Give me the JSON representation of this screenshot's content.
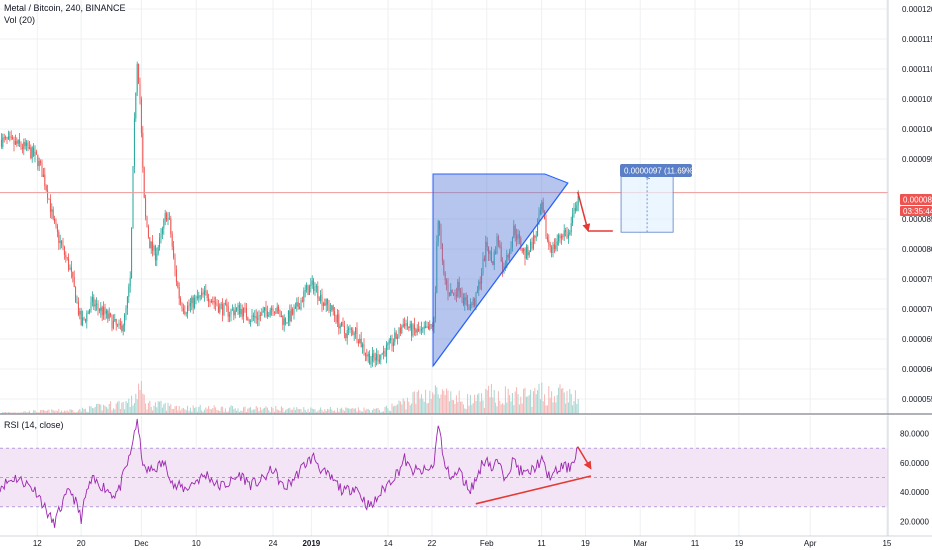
{
  "chart_data": [
    {
      "type": "candlestick",
      "title": "Metal / Bitcoin, 240, BINANCE",
      "volume_label": "Vol (20)",
      "ylim": [
        5.25e-05,
        0.0001215
      ],
      "y_ticks": [
        "0.0001200",
        "0.0001150",
        "0.0001100",
        "0.0001050",
        "0.0001000",
        "0.0000950",
        "0.0000850",
        "0.0000800",
        "0.0000750",
        "0.0000700",
        "0.0000650",
        "0.0000600",
        "0.0000550"
      ],
      "y_tick_values": [
        0.00012,
        0.000115,
        0.00011,
        0.000105,
        0.0001,
        9.5e-05,
        8.5e-05,
        8e-05,
        7.5e-05,
        7e-05,
        6.5e-05,
        6e-05,
        5.5e-05
      ],
      "current_price": "0.0000894",
      "current_price_value": 8.94e-05,
      "countdown": "03:35:44",
      "measure_label": "0.0000097 (11.69%) 97",
      "x_ticks": [
        {
          "label": "12",
          "day": 12
        },
        {
          "label": "20",
          "day": 20
        },
        {
          "label": "Dec",
          "day": 31
        },
        {
          "label": "10",
          "day": 41
        },
        {
          "label": "24",
          "day": 55
        },
        {
          "label": "2019",
          "day": 62
        },
        {
          "label": "14",
          "day": 76
        },
        {
          "label": "22",
          "day": 84
        },
        {
          "label": "Feb",
          "day": 94
        },
        {
          "label": "11",
          "day": 104
        },
        {
          "label": "19",
          "day": 112
        },
        {
          "label": "Mar",
          "day": 122
        },
        {
          "label": "11",
          "day": 132
        },
        {
          "label": "19",
          "day": 140
        },
        {
          "label": "Apr",
          "day": 153
        },
        {
          "label": "15",
          "day": 167
        }
      ],
      "x_domain_days": [
        5.2,
        167.2
      ],
      "price_path": [
        [
          5.2,
          9.82e-05
        ],
        [
          8,
          9.75e-05
        ],
        [
          10,
          9.68e-05
        ],
        [
          12,
          9.5e-05
        ],
        [
          13,
          9.25e-05
        ],
        [
          14,
          8.9e-05
        ],
        [
          15,
          8.4e-05
        ],
        [
          16,
          8.15e-05
        ],
        [
          17,
          7.9e-05
        ],
        [
          18,
          7.65e-05
        ],
        [
          19,
          7.2e-05
        ],
        [
          20,
          6.75e-05
        ],
        [
          21,
          6.9e-05
        ],
        [
          22,
          7.1e-05
        ],
        [
          24,
          6.95e-05
        ],
        [
          26,
          6.75e-05
        ],
        [
          27,
          6.65e-05
        ],
        [
          28,
          6.85e-05
        ],
        [
          29,
          7.5e-05
        ],
        [
          29.6,
          9.8e-05
        ],
        [
          30.2,
          0.000112
        ],
        [
          30.7,
          0.000106
        ],
        [
          31.2,
          9.4e-05
        ],
        [
          31.6,
          8.6e-05
        ],
        [
          32.5,
          8.1e-05
        ],
        [
          33.5,
          7.9e-05
        ],
        [
          34.5,
          8.15e-05
        ],
        [
          35.5,
          8.6e-05
        ],
        [
          36.2,
          8.4e-05
        ],
        [
          37,
          7.7e-05
        ],
        [
          38,
          7.15e-05
        ],
        [
          39,
          7e-05
        ],
        [
          41,
          7.15e-05
        ],
        [
          43,
          7.25e-05
        ],
        [
          45,
          7.05e-05
        ],
        [
          47,
          6.95e-05
        ],
        [
          49,
          7e-05
        ],
        [
          51,
          6.85e-05
        ],
        [
          53,
          6.9e-05
        ],
        [
          55,
          7.05e-05
        ],
        [
          57,
          6.8e-05
        ],
        [
          59,
          6.95e-05
        ],
        [
          61,
          7.3e-05
        ],
        [
          62.5,
          7.4e-05
        ],
        [
          64,
          7.15e-05
        ],
        [
          66,
          6.95e-05
        ],
        [
          68,
          6.6e-05
        ],
        [
          70,
          6.65e-05
        ],
        [
          72,
          6.25e-05
        ],
        [
          73,
          6.15e-05
        ],
        [
          74,
          6.2e-05
        ],
        [
          76,
          6.35e-05
        ],
        [
          78,
          6.6e-05
        ],
        [
          79,
          6.8e-05
        ],
        [
          80,
          6.65e-05
        ],
        [
          82,
          6.6e-05
        ],
        [
          83.5,
          6.65e-05
        ],
        [
          84.5,
          6.8e-05
        ],
        [
          85,
          8.6e-05
        ],
        [
          85.5,
          8.2e-05
        ],
        [
          86,
          7.6e-05
        ],
        [
          87,
          7.3e-05
        ],
        [
          88,
          7.25e-05
        ],
        [
          89,
          7.4e-05
        ],
        [
          90,
          7.1e-05
        ],
        [
          91,
          7.05e-05
        ],
        [
          92,
          7.15e-05
        ],
        [
          93,
          7.6e-05
        ],
        [
          94,
          8.1e-05
        ],
        [
          95,
          7.75e-05
        ],
        [
          96,
          8.2e-05
        ],
        [
          97,
          7.65e-05
        ],
        [
          98,
          7.95e-05
        ],
        [
          99,
          8.35e-05
        ],
        [
          100,
          8.1e-05
        ],
        [
          101,
          7.9e-05
        ],
        [
          102,
          8.05e-05
        ],
        [
          103,
          8.25e-05
        ],
        [
          104,
          8.7e-05
        ],
        [
          105,
          8.15e-05
        ],
        [
          106,
          8e-05
        ],
        [
          107,
          8.15e-05
        ],
        [
          108,
          8.3e-05
        ],
        [
          109,
          8.2e-05
        ],
        [
          110,
          8.65e-05
        ],
        [
          110.8,
          8.94e-05
        ]
      ],
      "volume_path": [
        [
          5.2,
          0.03
        ],
        [
          20,
          0.08
        ],
        [
          29.5,
          0.25
        ],
        [
          30.5,
          0.55
        ],
        [
          32,
          0.2
        ],
        [
          40,
          0.12
        ],
        [
          60,
          0.1
        ],
        [
          75,
          0.08
        ],
        [
          84,
          0.45
        ],
        [
          86,
          0.35
        ],
        [
          92,
          0.25
        ],
        [
          95,
          0.4
        ],
        [
          100,
          0.35
        ],
        [
          105,
          0.42
        ],
        [
          110,
          0.35
        ],
        [
          110.8,
          0.3
        ]
      ],
      "series": [
        {
          "name": "candles",
          "color_up": "#26a69a",
          "color_down": "#ef5350"
        },
        {
          "name": "volume",
          "color_up": "#a5d6d1",
          "color_down": "#f4b6b4"
        }
      ],
      "annotations": {
        "triangle": [
          [
            84.2,
            9.25e-05
          ],
          [
            104.6,
            9.25e-05
          ],
          [
            108.8,
            9.1e-05
          ],
          [
            84.2,
            6.05e-05
          ]
        ],
        "triangle_lower_line": [
          [
            84.2,
            6.05e-05
          ],
          [
            108.8,
            9.1e-05
          ]
        ],
        "arrow_down": [
          [
            110.6,
            8.95e-05
          ],
          [
            112.5,
            8.3e-05
          ]
        ],
        "arrow_flat": [
          [
            112.5,
            8.3e-05
          ],
          [
            117,
            8.3e-05
          ]
        ],
        "measure_box": [
          [
            118.5,
            9.25e-05
          ],
          [
            128,
            8.28e-05
          ]
        ]
      }
    },
    {
      "type": "line",
      "title": "RSI (14, close)",
      "ylim": [
        10,
        92
      ],
      "y_ticks": [
        "80.0000",
        "60.0000",
        "40.0000",
        "20.0000"
      ],
      "y_tick_values": [
        80,
        60,
        40,
        20
      ],
      "band": [
        30,
        70
      ],
      "rsi_path": [
        [
          5.2,
          44
        ],
        [
          8,
          50
        ],
        [
          10,
          46
        ],
        [
          12,
          40
        ],
        [
          13,
          32
        ],
        [
          14,
          25
        ],
        [
          15,
          18
        ],
        [
          16,
          27
        ],
        [
          17,
          35
        ],
        [
          18,
          42
        ],
        [
          19,
          33
        ],
        [
          20,
          22
        ],
        [
          21,
          40
        ],
        [
          22,
          48
        ],
        [
          24,
          44
        ],
        [
          26,
          38
        ],
        [
          27,
          42
        ],
        [
          28,
          55
        ],
        [
          29,
          65
        ],
        [
          29.6,
          80
        ],
        [
          30.2,
          88
        ],
        [
          30.8,
          72
        ],
        [
          31.5,
          55
        ],
        [
          33,
          55
        ],
        [
          35,
          60
        ],
        [
          36,
          54
        ],
        [
          37,
          43
        ],
        [
          38,
          44
        ],
        [
          39,
          42
        ],
        [
          41,
          48
        ],
        [
          43,
          52
        ],
        [
          45,
          44
        ],
        [
          47,
          46
        ],
        [
          49,
          52
        ],
        [
          51,
          45
        ],
        [
          53,
          48
        ],
        [
          55,
          56
        ],
        [
          57,
          42
        ],
        [
          59,
          50
        ],
        [
          61,
          60
        ],
        [
          62.5,
          64
        ],
        [
          64,
          54
        ],
        [
          66,
          48
        ],
        [
          68,
          40
        ],
        [
          70,
          44
        ],
        [
          72,
          32
        ],
        [
          73,
          30
        ],
        [
          74,
          36
        ],
        [
          76,
          46
        ],
        [
          78,
          55
        ],
        [
          79,
          63
        ],
        [
          80,
          55
        ],
        [
          82,
          54
        ],
        [
          83.5,
          55
        ],
        [
          84.5,
          60
        ],
        [
          85,
          88
        ],
        [
          85.6,
          78
        ],
        [
          86,
          62
        ],
        [
          87,
          53
        ],
        [
          88,
          50
        ],
        [
          89,
          55
        ],
        [
          90,
          46
        ],
        [
          91,
          42
        ],
        [
          92,
          48
        ],
        [
          93,
          58
        ],
        [
          94,
          64
        ],
        [
          95,
          55
        ],
        [
          96,
          62
        ],
        [
          97,
          50
        ],
        [
          98,
          56
        ],
        [
          99,
          62
        ],
        [
          100,
          55
        ],
        [
          101,
          52
        ],
        [
          102,
          54
        ],
        [
          103,
          58
        ],
        [
          104,
          62
        ],
        [
          105,
          52
        ],
        [
          106,
          51
        ],
        [
          107,
          55
        ],
        [
          108,
          58
        ],
        [
          109,
          56
        ],
        [
          110,
          64
        ],
        [
          110.8,
          72
        ]
      ],
      "color": "#9c27b0",
      "annotations": {
        "divergence_line": [
          [
            92,
            32
          ],
          [
            113,
            51
          ]
        ],
        "arrow_down": [
          [
            110.6,
            71
          ],
          [
            113,
            56
          ]
        ]
      }
    }
  ],
  "colors": {
    "grid": "#eef0f3",
    "axis": "#787b86",
    "triangle_fill": "#5b7fd6",
    "triangle_stroke": "#2962ff",
    "annotation": "#e53935",
    "price_line": "#ef9a9a",
    "badge_price": "#ef5350",
    "badge_measure": "#5a7fc7",
    "rsi_band": "#f3e5f5",
    "rsi_band_line": "#b39ddb"
  }
}
